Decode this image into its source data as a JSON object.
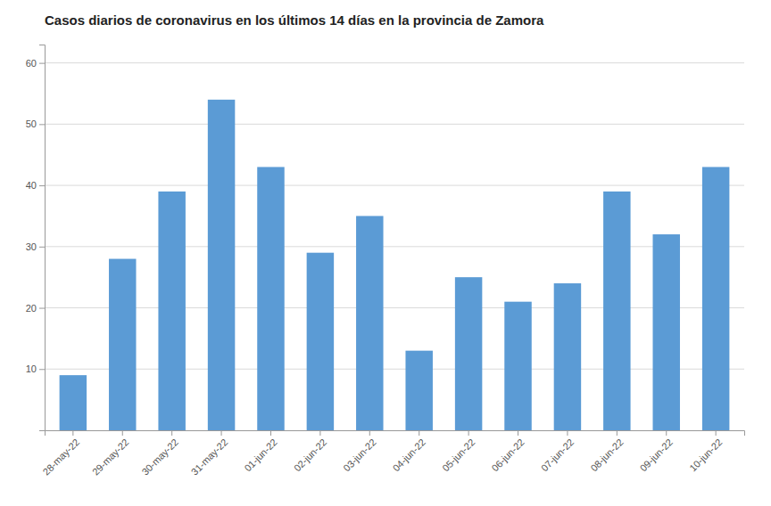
{
  "chart_data": {
    "type": "bar",
    "title": "Casos diarios de coronavirus en los últimos 14 días en la provincia de Zamora",
    "categories": [
      "28-may-22",
      "29-may-22",
      "30-may-22",
      "31-may-22",
      "01-jun-22",
      "02-jun-22",
      "03-jun-22",
      "04-jun-22",
      "05-jun-22",
      "06-jun-22",
      "07-jun-22",
      "08-jun-22",
      "09-jun-22",
      "10-jun-22"
    ],
    "values": [
      9,
      28,
      39,
      54,
      43,
      29,
      35,
      13,
      25,
      21,
      24,
      39,
      32,
      43
    ],
    "color": "#5b9bd5",
    "ylim": [
      0,
      63
    ],
    "yticks": [
      10,
      20,
      30,
      40,
      50,
      60
    ],
    "grid": true
  }
}
